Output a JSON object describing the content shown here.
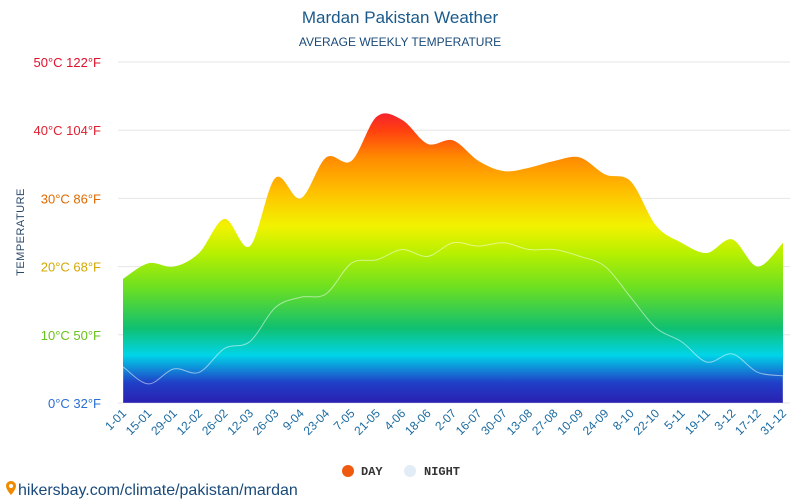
{
  "header": {
    "title": "Mardan Pakistan Weather",
    "subtitle": "AVERAGE WEEKLY TEMPERATURE"
  },
  "footer": {
    "source_text": "hikersbay.com/climate/pakistan/mardan"
  },
  "chart_data": {
    "type": "area",
    "title": "Mardan Pakistan Weather",
    "subtitle": "AVERAGE WEEKLY TEMPERATURE",
    "ylabel": "TEMPERATURE",
    "xlabel": "",
    "ylim": [
      0,
      50
    ],
    "y_ticks": [
      {
        "value": 0,
        "label": "0°C 32°F",
        "color": "#2a6fd6"
      },
      {
        "value": 10,
        "label": "10°C 50°F",
        "color": "#6ac21a"
      },
      {
        "value": 20,
        "label": "20°C 68°F",
        "color": "#d4a800"
      },
      {
        "value": 30,
        "label": "30°C 86°F",
        "color": "#e06a00"
      },
      {
        "value": 40,
        "label": "40°C 104°F",
        "color": "#e02030"
      },
      {
        "value": 50,
        "label": "50°C 122°F",
        "color": "#e0102a"
      }
    ],
    "grid": true,
    "legend_position": "bottom-center",
    "x": [
      "1-01",
      "15-01",
      "29-01",
      "12-02",
      "26-02",
      "12-03",
      "26-03",
      "9-04",
      "23-04",
      "7-05",
      "21-05",
      "4-06",
      "18-06",
      "2-07",
      "16-07",
      "30-07",
      "13-08",
      "27-08",
      "10-09",
      "24-09",
      "8-10",
      "22-10",
      "5-11",
      "19-11",
      "3-12",
      "17-12",
      "31-12"
    ],
    "series": [
      {
        "name": "DAY",
        "color": "#f05a10",
        "values": [
          18.2,
          20.5,
          20,
          22,
          27,
          23,
          33,
          30,
          36,
          35.5,
          42,
          41.5,
          38,
          38.5,
          35.5,
          34,
          34.5,
          35.5,
          36,
          33.5,
          32.5,
          26,
          23.5,
          22,
          24,
          20,
          23.5
        ]
      },
      {
        "name": "NIGHT",
        "color": "#e2ecf6",
        "values": [
          5.3,
          2.8,
          5,
          4.5,
          8,
          9,
          14,
          15.5,
          16,
          20.5,
          21,
          22.5,
          21.5,
          23.5,
          23,
          23.5,
          22.5,
          22.5,
          21.5,
          20,
          15.5,
          11,
          9,
          6,
          7.2,
          4.5,
          4
        ]
      }
    ]
  },
  "legend": [
    {
      "label": "DAY",
      "color": "#f05a10"
    },
    {
      "label": "NIGHT",
      "color": "#e2ecf6"
    }
  ]
}
